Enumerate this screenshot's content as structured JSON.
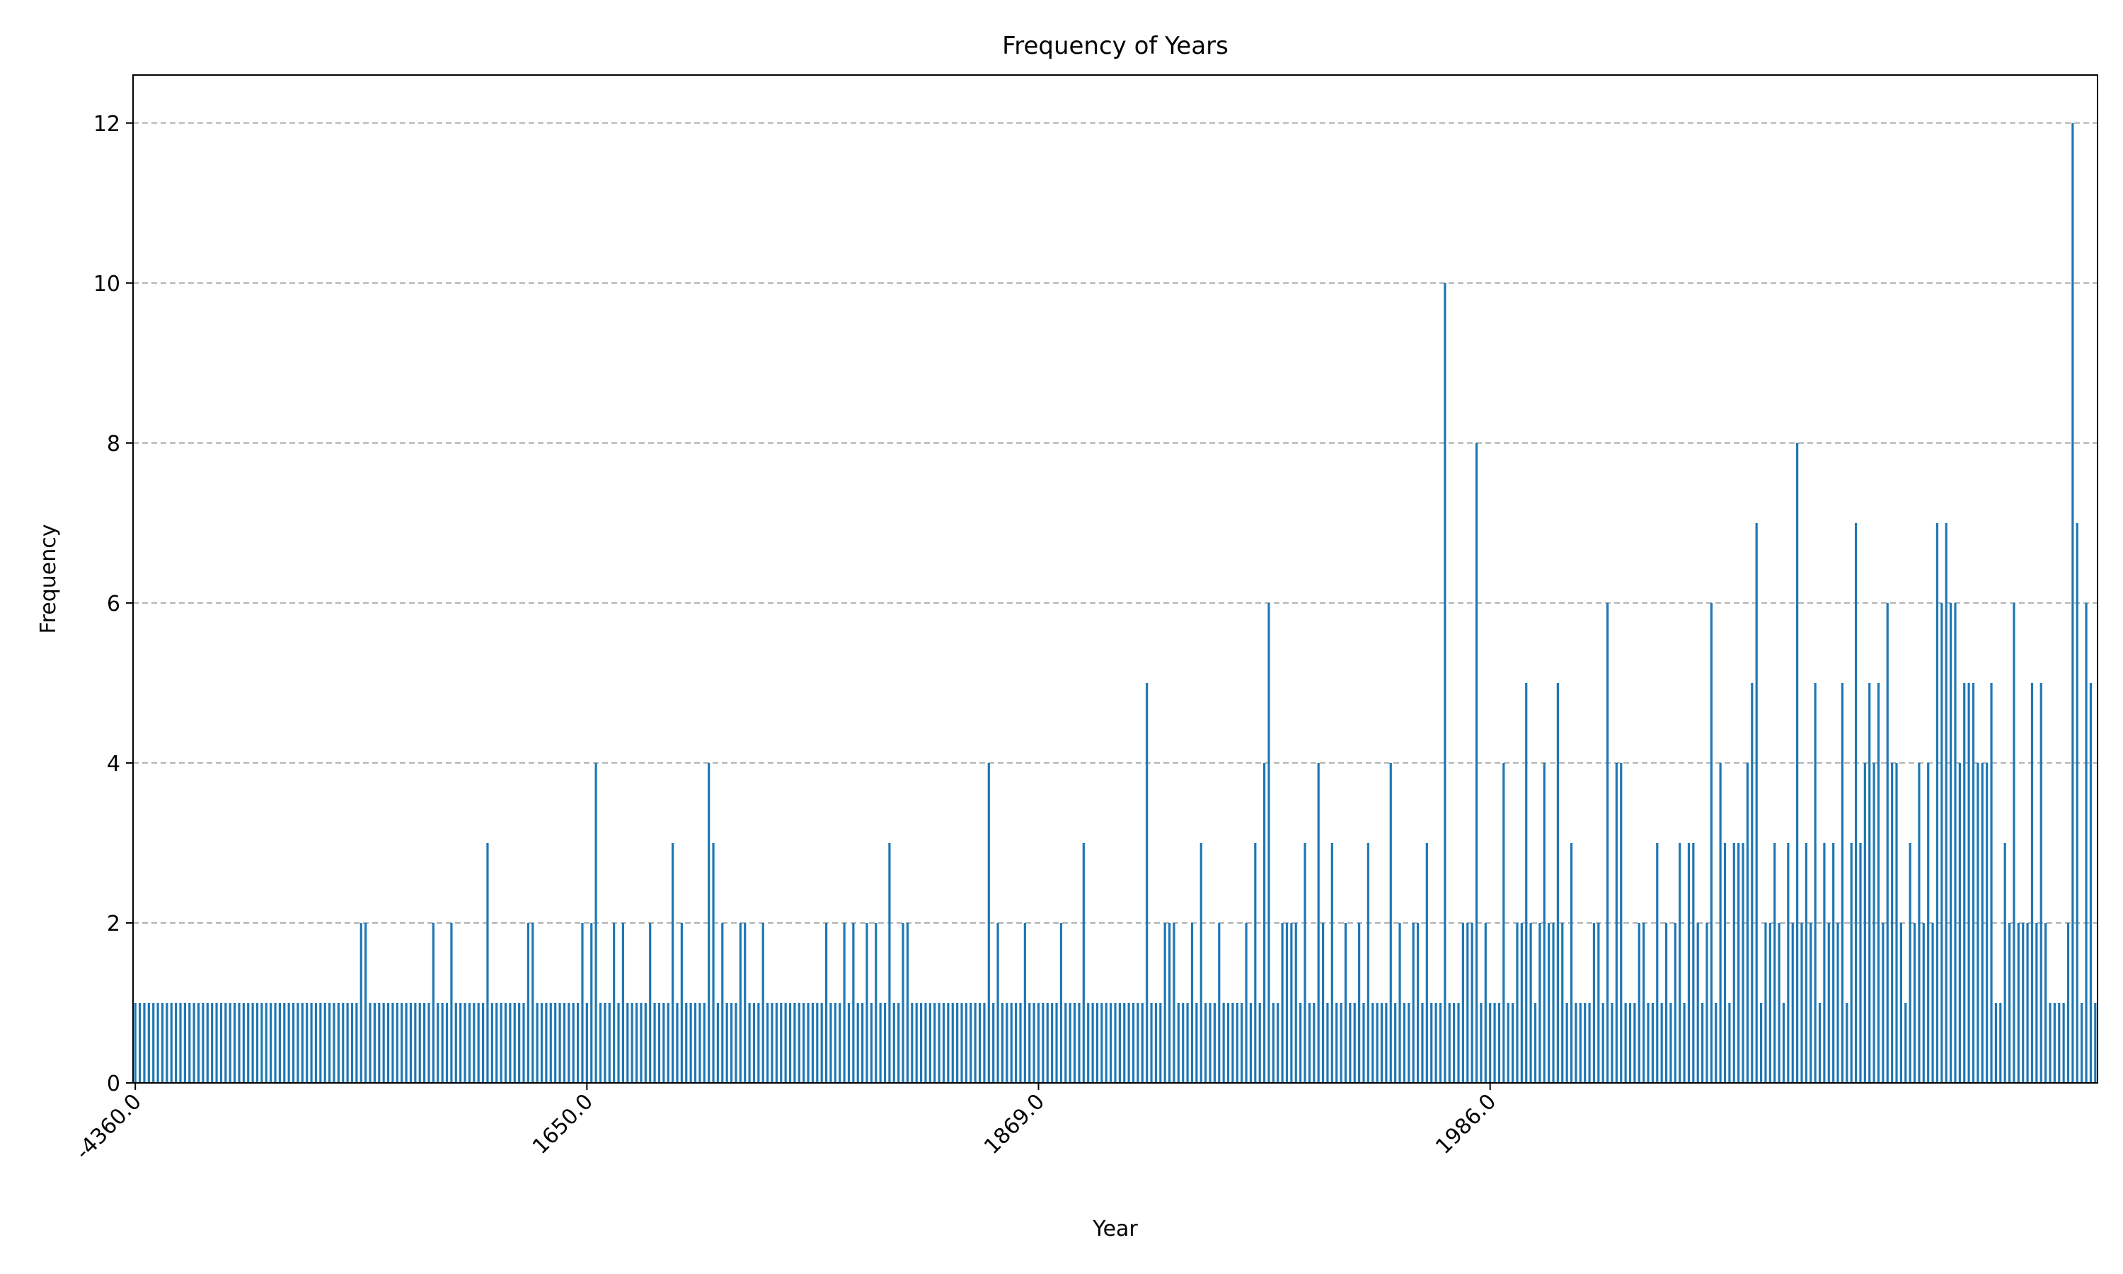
{
  "chart_data": {
    "type": "bar",
    "title": "Frequency of Years",
    "xlabel": "Year",
    "ylabel": "Frequency",
    "ylim": [
      0,
      12.6
    ],
    "yticks": [
      0,
      2,
      4,
      6,
      8,
      10,
      12
    ],
    "xtick_labels": [
      "-4360.0",
      "1650.0",
      "1869.0",
      "1986.0"
    ],
    "xtick_category_index": [
      0,
      100,
      200,
      300
    ],
    "grid": "y-dashed",
    "bar_color": "#1f77b4",
    "values": [
      1,
      1,
      1,
      1,
      1,
      1,
      1,
      1,
      1,
      1,
      1,
      1,
      1,
      1,
      1,
      1,
      1,
      1,
      1,
      1,
      1,
      1,
      1,
      1,
      1,
      1,
      1,
      1,
      1,
      1,
      1,
      1,
      1,
      1,
      1,
      1,
      1,
      1,
      1,
      1,
      1,
      1,
      1,
      1,
      1,
      1,
      1,
      1,
      1,
      1,
      2,
      2,
      1,
      1,
      1,
      1,
      1,
      1,
      1,
      1,
      1,
      1,
      1,
      1,
      1,
      1,
      2,
      1,
      1,
      1,
      2,
      1,
      1,
      1,
      1,
      1,
      1,
      1,
      3,
      1,
      1,
      1,
      1,
      1,
      1,
      1,
      1,
      2,
      2,
      1,
      1,
      1,
      1,
      1,
      1,
      1,
      1,
      1,
      1,
      2,
      1,
      2,
      4,
      1,
      1,
      1,
      2,
      1,
      2,
      1,
      1,
      1,
      1,
      1,
      2,
      1,
      1,
      1,
      1,
      3,
      1,
      2,
      1,
      1,
      1,
      1,
      1,
      4,
      3,
      1,
      2,
      1,
      1,
      1,
      2,
      2,
      1,
      1,
      1,
      2,
      1,
      1,
      1,
      1,
      1,
      1,
      1,
      1,
      1,
      1,
      1,
      1,
      1,
      2,
      1,
      1,
      1,
      2,
      1,
      2,
      1,
      1,
      2,
      1,
      2,
      1,
      1,
      3,
      1,
      1,
      2,
      2,
      1,
      1,
      1,
      1,
      1,
      1,
      1,
      1,
      1,
      1,
      1,
      1,
      1,
      1,
      1,
      1,
      1,
      4,
      1,
      2,
      1,
      1,
      1,
      1,
      1,
      2,
      1,
      1,
      1,
      1,
      1,
      1,
      1,
      2,
      1,
      1,
      1,
      1,
      3,
      1,
      1,
      1,
      1,
      1,
      1,
      1,
      1,
      1,
      1,
      1,
      1,
      1,
      5,
      1,
      1,
      1,
      2,
      2,
      2,
      1,
      1,
      1,
      2,
      1,
      3,
      1,
      1,
      1,
      2,
      1,
      1,
      1,
      1,
      1,
      2,
      1,
      3,
      1,
      4,
      6,
      1,
      1,
      2,
      2,
      2,
      2,
      1,
      3,
      1,
      1,
      4,
      2,
      1,
      3,
      1,
      1,
      2,
      1,
      1,
      2,
      1,
      3,
      1,
      1,
      1,
      1,
      4,
      1,
      2,
      1,
      1,
      2,
      2,
      1,
      3,
      1,
      1,
      1,
      10,
      1,
      1,
      1,
      2,
      2,
      2,
      8,
      1,
      2,
      1,
      1,
      1,
      4,
      1,
      1,
      2,
      2,
      5,
      2,
      1,
      2,
      4,
      2,
      2,
      5,
      2,
      1,
      3,
      1,
      1,
      1,
      1,
      2,
      2,
      1,
      6,
      1,
      4,
      4,
      1,
      1,
      1,
      2,
      2,
      1,
      1,
      3,
      1,
      2,
      1,
      2,
      3,
      1,
      3,
      3,
      2,
      1,
      2,
      6,
      1,
      4,
      3,
      1,
      3,
      3,
      3,
      4,
      5,
      7,
      1,
      2,
      2,
      3,
      2,
      1,
      3,
      2,
      8,
      2,
      3,
      2,
      5,
      1,
      3,
      2,
      3,
      2,
      5,
      1,
      3,
      7,
      3,
      4,
      5,
      4,
      5,
      2,
      6,
      4,
      4,
      2,
      1,
      3,
      2,
      4,
      2,
      4,
      2,
      7,
      6,
      7,
      6,
      6,
      4,
      5,
      5,
      5,
      4,
      4,
      4,
      5,
      1,
      1,
      3,
      2,
      6,
      2,
      2,
      2,
      5,
      2,
      5,
      2,
      1,
      1,
      1,
      1,
      2,
      12,
      7,
      1,
      6,
      5,
      1
    ]
  }
}
